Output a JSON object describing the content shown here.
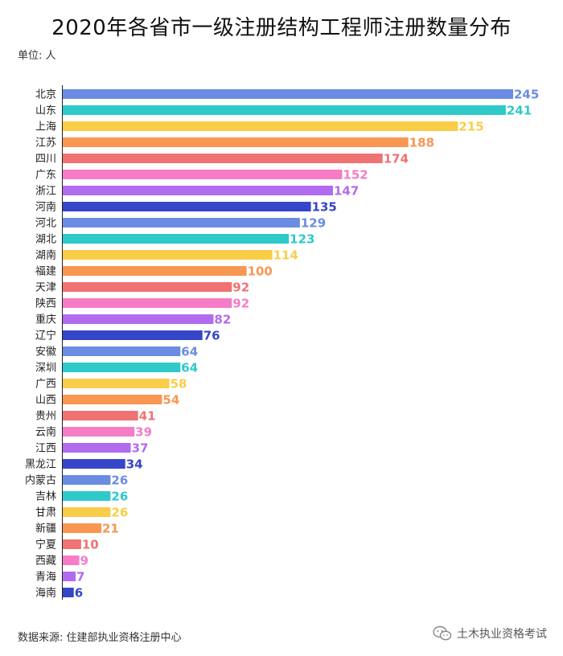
{
  "chart_data": {
    "type": "bar",
    "orientation": "horizontal",
    "title": "2020年各省市一级注册结构工程师注册数量分布",
    "unit": "单位: 人",
    "categories": [
      "北京",
      "山东",
      "上海",
      "江苏",
      "四川",
      "广东",
      "浙江",
      "河南",
      "河北",
      "湖北",
      "湖南",
      "福建",
      "天津",
      "陕西",
      "重庆",
      "辽宁",
      "安徽",
      "深圳",
      "广西",
      "山西",
      "贵州",
      "云南",
      "江西",
      "黑龙江",
      "内蒙古",
      "吉林",
      "甘肃",
      "新疆",
      "宁夏",
      "西藏",
      "青海",
      "海南"
    ],
    "values": [
      245,
      241,
      215,
      188,
      174,
      152,
      147,
      135,
      129,
      123,
      114,
      100,
      92,
      92,
      82,
      76,
      64,
      64,
      58,
      54,
      41,
      39,
      37,
      34,
      26,
      26,
      26,
      21,
      10,
      9,
      7,
      6
    ],
    "xlim": [
      0,
      245
    ],
    "palette": [
      "#6b8ce3",
      "#2ec9c9",
      "#f9cd48",
      "#f89652",
      "#f07272",
      "#f57cc5",
      "#b06bee",
      "#3646c8"
    ],
    "grid": false,
    "legend": "none",
    "source": "数据来源: 住建部执业资格注册中心"
  },
  "watermark": {
    "text": "土木执业资格考试",
    "icon": "wechat-icon"
  }
}
